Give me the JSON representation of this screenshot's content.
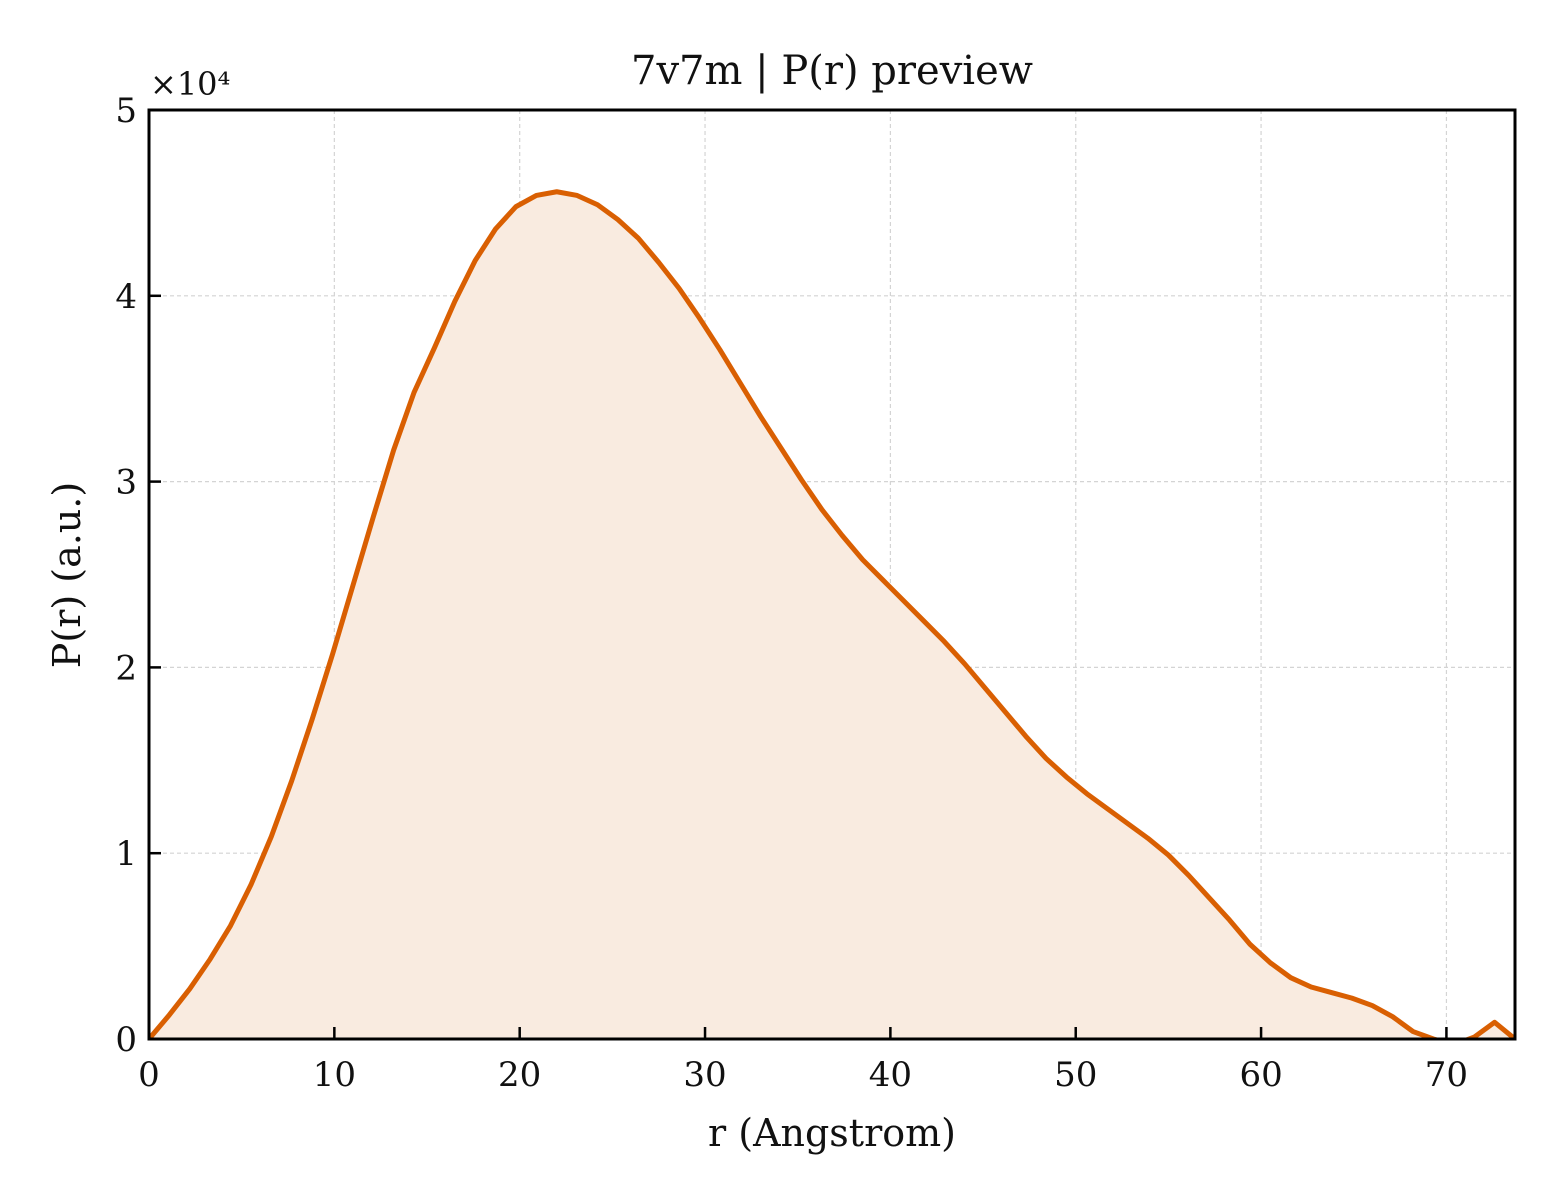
{
  "chart_data": {
    "type": "area-line",
    "title": "7v7m | P(r) preview",
    "x_label": "r (Angstrom)",
    "y_label": "P(r) (a.u.)",
    "y_offset_label": "×10⁴",
    "x": [
      0,
      1.1,
      2.2,
      3.3,
      4.4,
      5.5,
      6.6,
      7.7,
      8.8,
      9.9,
      11.0,
      12.1,
      13.2,
      14.3,
      15.4,
      16.5,
      17.6,
      18.7,
      19.8,
      20.9,
      22.0,
      23.1,
      24.2,
      25.3,
      26.4,
      27.5,
      28.6,
      29.7,
      30.8,
      31.9,
      33.0,
      34.1,
      35.2,
      36.3,
      37.4,
      38.5,
      39.6,
      40.7,
      41.8,
      42.9,
      44.0,
      45.1,
      46.2,
      47.3,
      48.4,
      49.5,
      50.6,
      51.7,
      52.8,
      53.9,
      55.0,
      56.1,
      57.2,
      58.3,
      59.4,
      60.5,
      61.6,
      62.7,
      63.8,
      64.9,
      66.0,
      67.1,
      68.2,
      69.3,
      70.4,
      71.5,
      72.6,
      73.7
    ],
    "series": [
      {
        "name": "P(r)",
        "color": "#d95f02",
        "fill": "#f9ebe0",
        "values": [
          0,
          1300,
          2700,
          4300,
          6100,
          8300,
          10900,
          13900,
          17200,
          20700,
          24400,
          28100,
          31700,
          34800,
          37200,
          39700,
          41900,
          43600,
          44800,
          45400,
          45600,
          45400,
          44900,
          44100,
          43100,
          41800,
          40400,
          38800,
          37100,
          35300,
          33500,
          31800,
          30100,
          28500,
          27100,
          25800,
          24700,
          23600,
          22500,
          21400,
          20200,
          18900,
          17600,
          16300,
          15100,
          14100,
          13200,
          12400,
          11600,
          10800,
          9900,
          8800,
          7600,
          6400,
          5100,
          4100,
          3300,
          2800,
          2500,
          2200,
          1800,
          1200,
          400,
          0,
          -300,
          100,
          900,
          0
        ]
      }
    ],
    "xlim": [
      0,
      73.7
    ],
    "ylim": [
      0,
      50000
    ],
    "xticks": [
      0,
      10,
      20,
      30,
      40,
      50,
      60,
      70
    ],
    "yticks": [
      0,
      {
        "value": 10000,
        "label": "1"
      },
      {
        "value": 20000,
        "label": "2"
      },
      {
        "value": 30000,
        "label": "3"
      },
      {
        "value": 40000,
        "label": "4"
      },
      {
        "value": 50000,
        "label": "5"
      }
    ],
    "grid": true
  }
}
